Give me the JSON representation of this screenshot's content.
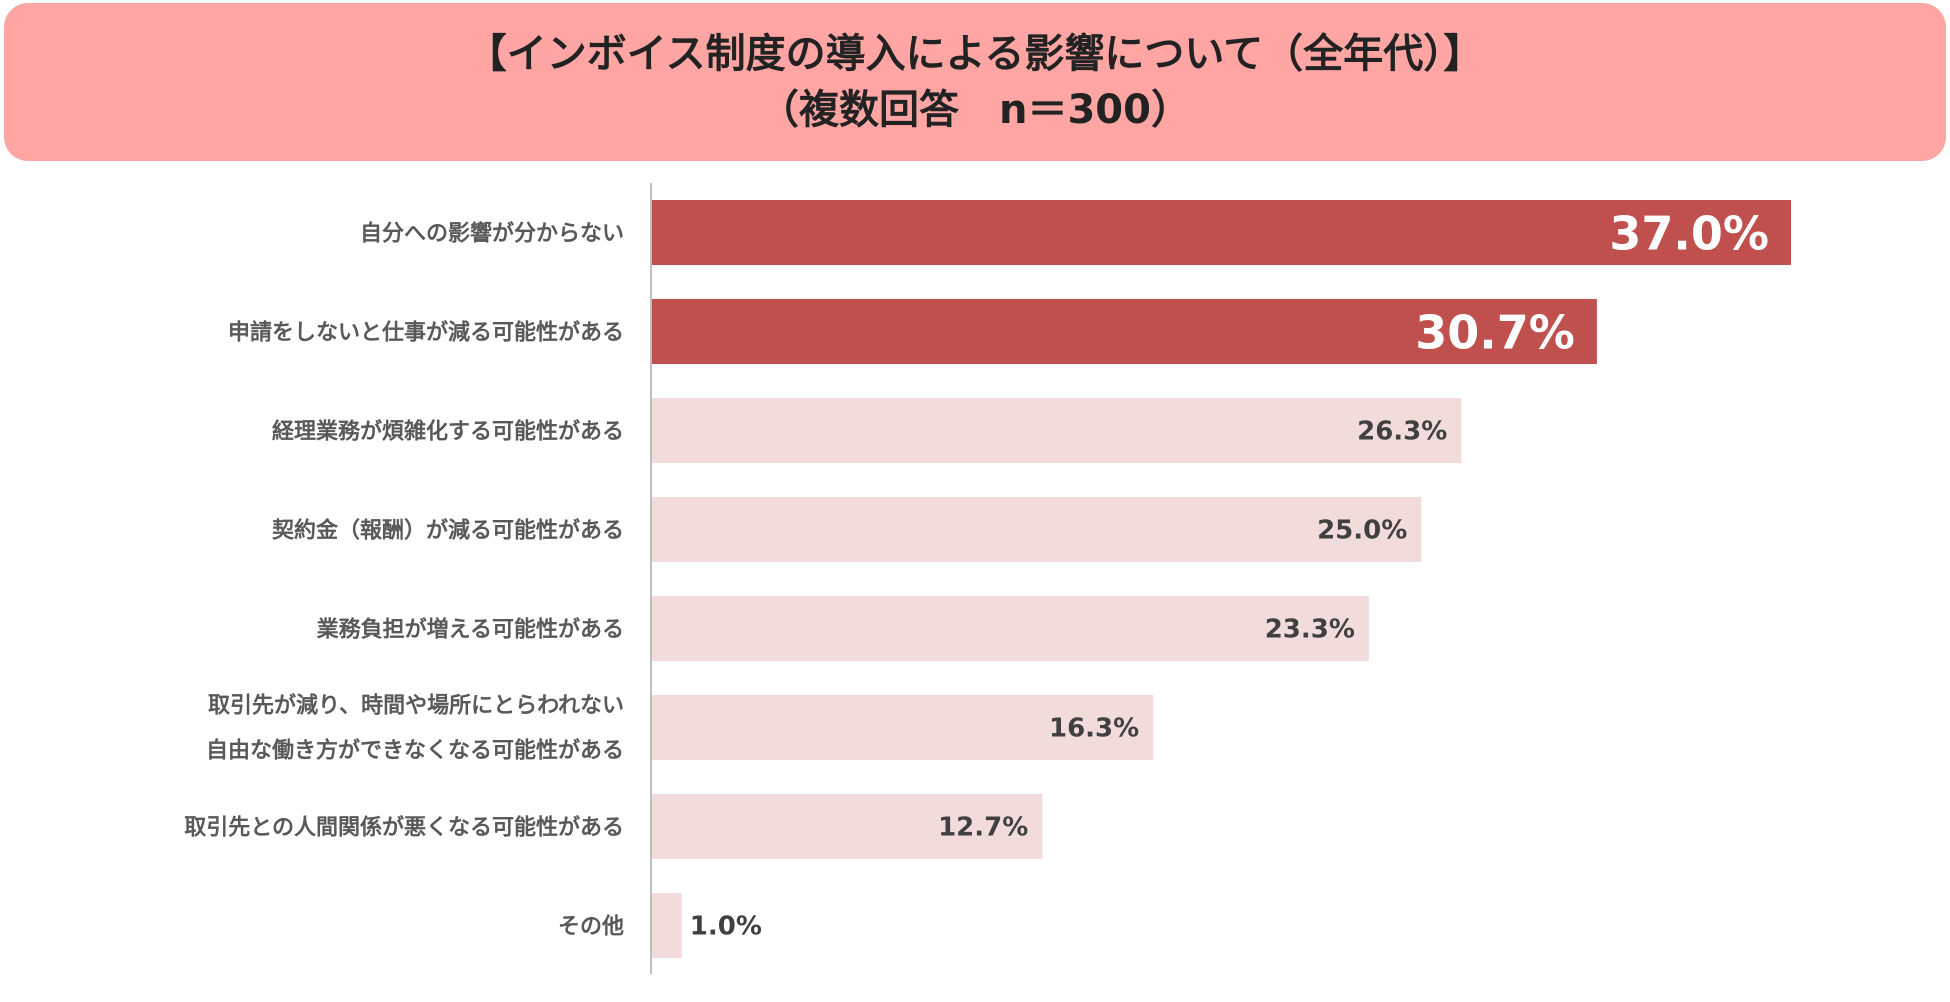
{
  "title": {
    "line1": "【インボイス制度の導入による影響について（全年代）】",
    "line2": "（複数回答　n＝300）"
  },
  "chart_data": {
    "type": "bar",
    "orientation": "horizontal",
    "categories": [
      [
        "自分への影響が分からない"
      ],
      [
        "申請をしないと仕事が減る可能性がある"
      ],
      [
        "経理業務が煩雑化する可能性がある"
      ],
      [
        "契約金（報酬）が減る可能性がある"
      ],
      [
        "業務負担が増える可能性がある"
      ],
      [
        "取引先が減り、時間や場所にとらわれない",
        "自由な働き方ができなくなる可能性がある"
      ],
      [
        "取引先との人間関係が悪くなる可能性がある"
      ],
      [
        "その他"
      ]
    ],
    "values": [
      37.0,
      30.7,
      26.3,
      25.0,
      23.3,
      16.3,
      12.7,
      1.0
    ],
    "value_labels": [
      "37.0%",
      "30.7%",
      "26.3%",
      "25.0%",
      "23.3%",
      "16.3%",
      "12.7%",
      "1.0%"
    ],
    "highlighted": [
      true,
      true,
      false,
      false,
      false,
      false,
      false,
      false
    ],
    "unit": "%",
    "xlim": [
      0,
      37.0
    ],
    "grid": false,
    "legend": "none",
    "colors": {
      "highlight_bar": "#c0504d",
      "normal_bar": "#f2dcdb",
      "highlight_label": "#ffffff",
      "normal_label": "#404040",
      "category_label": "#595959",
      "axis": "#bfbfbf"
    }
  }
}
